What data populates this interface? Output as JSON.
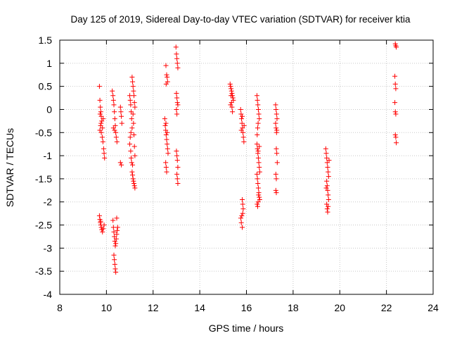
{
  "chart_data": {
    "type": "scatter",
    "title": "Day 125 of 2019, Sidereal Day-to-day VTEC variation (SDTVAR) for receiver ktia",
    "xlabel": "GPS time / hours",
    "ylabel": "SDTVAR / TECUs",
    "xlim": [
      8,
      24
    ],
    "ylim": [
      -4,
      1.5
    ],
    "xticks": [
      8,
      10,
      12,
      14,
      16,
      18,
      20,
      22,
      24
    ],
    "yticks": [
      1.5,
      1,
      0.5,
      0,
      -0.5,
      -1,
      -1.5,
      -2,
      -2.5,
      -3,
      -3.5,
      -4
    ],
    "marker": "+",
    "color": "#ff0000",
    "series": [
      {
        "name": "SDTVAR",
        "points": [
          [
            9.7,
            0.5
          ],
          [
            9.72,
            0.2
          ],
          [
            9.74,
            0.05
          ],
          [
            9.76,
            -0.05
          ],
          [
            9.78,
            -0.15
          ],
          [
            9.8,
            -0.25
          ],
          [
            9.75,
            -0.35
          ],
          [
            9.72,
            -0.45
          ],
          [
            9.78,
            -0.5
          ],
          [
            9.82,
            -0.6
          ],
          [
            9.85,
            -0.7
          ],
          [
            9.88,
            -0.85
          ],
          [
            9.9,
            -0.95
          ],
          [
            9.92,
            -1.05
          ],
          [
            9.77,
            -0.3
          ],
          [
            9.83,
            -0.4
          ],
          [
            9.73,
            -0.1
          ],
          [
            9.86,
            -0.2
          ],
          [
            9.7,
            -2.3
          ],
          [
            9.72,
            -2.38
          ],
          [
            9.74,
            -2.45
          ],
          [
            9.76,
            -2.5
          ],
          [
            9.78,
            -2.55
          ],
          [
            9.8,
            -2.6
          ],
          [
            9.83,
            -2.65
          ],
          [
            9.86,
            -2.58
          ],
          [
            9.9,
            -2.5
          ],
          [
            9.75,
            -2.42
          ],
          [
            10.25,
            0.4
          ],
          [
            10.28,
            0.3
          ],
          [
            10.3,
            0.2
          ],
          [
            10.32,
            0.1
          ],
          [
            10.34,
            -0.05
          ],
          [
            10.36,
            -0.2
          ],
          [
            10.38,
            -0.35
          ],
          [
            10.4,
            -0.5
          ],
          [
            10.42,
            -0.6
          ],
          [
            10.45,
            -0.7
          ],
          [
            10.3,
            -0.4
          ],
          [
            10.35,
            -0.45
          ],
          [
            10.28,
            -2.4
          ],
          [
            10.3,
            -2.55
          ],
          [
            10.32,
            -2.65
          ],
          [
            10.34,
            -2.75
          ],
          [
            10.36,
            -2.85
          ],
          [
            10.38,
            -2.95
          ],
          [
            10.4,
            -2.9
          ],
          [
            10.42,
            -2.8
          ],
          [
            10.44,
            -2.7
          ],
          [
            10.46,
            -2.62
          ],
          [
            10.48,
            -2.55
          ],
          [
            10.44,
            -2.35
          ],
          [
            10.32,
            -3.15
          ],
          [
            10.34,
            -3.25
          ],
          [
            10.36,
            -3.35
          ],
          [
            10.38,
            -3.45
          ],
          [
            10.4,
            -3.52
          ],
          [
            10.6,
            0.05
          ],
          [
            10.62,
            -0.05
          ],
          [
            10.64,
            -0.15
          ],
          [
            10.66,
            -0.3
          ],
          [
            10.6,
            -1.15
          ],
          [
            10.64,
            -1.2
          ],
          [
            11.0,
            0.3
          ],
          [
            11.02,
            0.2
          ],
          [
            11.04,
            0.1
          ],
          [
            11.06,
            -0.05
          ],
          [
            11.08,
            -0.2
          ],
          [
            11.1,
            -0.4
          ],
          [
            11.02,
            -0.6
          ],
          [
            11.0,
            -0.75
          ],
          [
            11.04,
            -0.9
          ],
          [
            11.06,
            -1.05
          ],
          [
            11.08,
            -1.15
          ],
          [
            11.05,
            -0.5
          ],
          [
            11.1,
            0.7
          ],
          [
            11.12,
            0.6
          ],
          [
            11.14,
            0.5
          ],
          [
            11.16,
            0.4
          ],
          [
            11.18,
            0.3
          ],
          [
            11.2,
            0.15
          ],
          [
            11.22,
            0.05
          ],
          [
            11.14,
            -0.1
          ],
          [
            11.16,
            -0.3
          ],
          [
            11.18,
            -0.55
          ],
          [
            11.2,
            -0.8
          ],
          [
            11.22,
            -1.0
          ],
          [
            11.12,
            -1.2
          ],
          [
            11.1,
            -1.35
          ],
          [
            11.12,
            -1.42
          ],
          [
            11.14,
            -1.5
          ],
          [
            11.16,
            -1.55
          ],
          [
            11.18,
            -1.6
          ],
          [
            11.2,
            -1.65
          ],
          [
            11.22,
            -1.7
          ],
          [
            12.55,
            0.95
          ],
          [
            12.58,
            0.75
          ],
          [
            12.6,
            0.7
          ],
          [
            12.62,
            0.6
          ],
          [
            12.56,
            0.55
          ],
          [
            12.5,
            -0.2
          ],
          [
            12.52,
            -0.35
          ],
          [
            12.54,
            -0.45
          ],
          [
            12.56,
            -0.55
          ],
          [
            12.58,
            -0.65
          ],
          [
            12.6,
            -0.75
          ],
          [
            12.62,
            -0.85
          ],
          [
            12.64,
            -0.95
          ],
          [
            12.55,
            -0.3
          ],
          [
            12.6,
            -0.5
          ],
          [
            12.54,
            -1.15
          ],
          [
            12.56,
            -1.25
          ],
          [
            12.58,
            -1.35
          ],
          [
            12.98,
            1.35
          ],
          [
            13.0,
            1.2
          ],
          [
            13.02,
            1.1
          ],
          [
            13.04,
            1.0
          ],
          [
            13.06,
            0.9
          ],
          [
            13.0,
            0.35
          ],
          [
            13.02,
            0.25
          ],
          [
            13.04,
            0.15
          ],
          [
            13.06,
            0.1
          ],
          [
            13.0,
            0.0
          ],
          [
            13.02,
            -0.1
          ],
          [
            13.0,
            -0.9
          ],
          [
            13.02,
            -1.0
          ],
          [
            13.04,
            -1.1
          ],
          [
            13.06,
            -1.25
          ],
          [
            13.02,
            -1.4
          ],
          [
            13.04,
            -1.5
          ],
          [
            13.06,
            -1.6
          ],
          [
            15.3,
            0.55
          ],
          [
            15.32,
            0.5
          ],
          [
            15.34,
            0.45
          ],
          [
            15.36,
            0.4
          ],
          [
            15.38,
            0.35
          ],
          [
            15.4,
            0.3
          ],
          [
            15.42,
            0.25
          ],
          [
            15.44,
            0.2
          ],
          [
            15.36,
            0.15
          ],
          [
            15.38,
            0.05
          ],
          [
            15.4,
            -0.05
          ],
          [
            15.32,
            0.1
          ],
          [
            15.34,
            0.3
          ],
          [
            15.75,
            0.0
          ],
          [
            15.77,
            -0.1
          ],
          [
            15.79,
            -0.2
          ],
          [
            15.81,
            -0.3
          ],
          [
            15.83,
            -0.4
          ],
          [
            15.85,
            -0.5
          ],
          [
            15.87,
            -0.6
          ],
          [
            15.89,
            -0.7
          ],
          [
            15.78,
            -0.45
          ],
          [
            15.82,
            -0.15
          ],
          [
            15.9,
            -0.35
          ],
          [
            15.82,
            -1.95
          ],
          [
            15.84,
            -2.05
          ],
          [
            15.86,
            -2.15
          ],
          [
            15.8,
            -2.3
          ],
          [
            15.78,
            -2.45
          ],
          [
            15.82,
            -2.55
          ],
          [
            15.76,
            -2.35
          ],
          [
            15.84,
            -2.25
          ],
          [
            16.45,
            0.3
          ],
          [
            16.47,
            0.2
          ],
          [
            16.49,
            0.1
          ],
          [
            16.51,
            0.0
          ],
          [
            16.53,
            -0.1
          ],
          [
            16.55,
            -0.2
          ],
          [
            16.5,
            -0.3
          ],
          [
            16.48,
            -0.4
          ],
          [
            16.46,
            -0.55
          ],
          [
            16.45,
            -0.75
          ],
          [
            16.47,
            -0.85
          ],
          [
            16.49,
            -0.95
          ],
          [
            16.51,
            -1.05
          ],
          [
            16.53,
            -1.15
          ],
          [
            16.55,
            -1.25
          ],
          [
            16.57,
            -1.35
          ],
          [
            16.5,
            -0.9
          ],
          [
            16.55,
            -0.8
          ],
          [
            16.45,
            -1.4
          ],
          [
            16.47,
            -1.5
          ],
          [
            16.49,
            -1.6
          ],
          [
            16.51,
            -1.7
          ],
          [
            16.53,
            -1.8
          ],
          [
            16.55,
            -1.9
          ],
          [
            16.57,
            -1.95
          ],
          [
            16.5,
            -2.0
          ],
          [
            16.48,
            -2.1
          ],
          [
            16.46,
            -2.05
          ],
          [
            16.52,
            -1.85
          ],
          [
            17.25,
            0.1
          ],
          [
            17.27,
            0.0
          ],
          [
            17.29,
            -0.1
          ],
          [
            17.31,
            -0.2
          ],
          [
            17.25,
            -0.3
          ],
          [
            17.27,
            -0.4
          ],
          [
            17.29,
            -0.5
          ],
          [
            17.3,
            -0.45
          ],
          [
            17.28,
            -0.85
          ],
          [
            17.3,
            -0.95
          ],
          [
            17.32,
            -1.15
          ],
          [
            17.26,
            -1.4
          ],
          [
            17.28,
            -1.5
          ],
          [
            17.26,
            -1.75
          ],
          [
            17.28,
            -1.8
          ],
          [
            19.4,
            -0.85
          ],
          [
            19.42,
            -0.95
          ],
          [
            19.44,
            -1.05
          ],
          [
            19.46,
            -1.15
          ],
          [
            19.48,
            -1.25
          ],
          [
            19.5,
            -1.35
          ],
          [
            19.52,
            -1.45
          ],
          [
            19.44,
            -1.55
          ],
          [
            19.46,
            -1.65
          ],
          [
            19.48,
            -1.75
          ],
          [
            19.5,
            -1.85
          ],
          [
            19.52,
            -1.95
          ],
          [
            19.44,
            -2.05
          ],
          [
            19.46,
            -2.15
          ],
          [
            19.48,
            -2.22
          ],
          [
            19.5,
            -2.1
          ],
          [
            19.54,
            -1.1
          ],
          [
            19.42,
            -1.7
          ],
          [
            22.38,
            1.42
          ],
          [
            22.4,
            1.38
          ],
          [
            22.42,
            1.35
          ],
          [
            22.36,
            0.72
          ],
          [
            22.38,
            0.55
          ],
          [
            22.4,
            0.45
          ],
          [
            22.36,
            0.15
          ],
          [
            22.38,
            -0.05
          ],
          [
            22.4,
            -0.1
          ],
          [
            22.38,
            -0.55
          ],
          [
            22.4,
            -0.6
          ],
          [
            22.42,
            -0.72
          ]
        ]
      }
    ]
  }
}
